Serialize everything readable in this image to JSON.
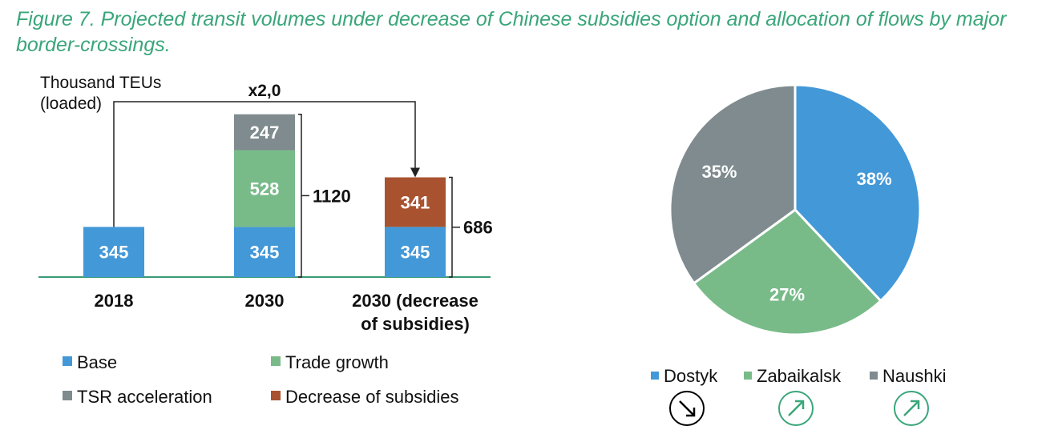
{
  "figure_title": "Figure 7. Projected transit volumes under decrease of Chinese subsidies option and allocation of flows by major border-crossings.",
  "colors": {
    "base": "#4398d8",
    "trade_growth": "#78bb89",
    "tsr_acceleration": "#7f8b8e",
    "decrease_of_subsidies": "#a9522f",
    "title": "#3aa67a",
    "axis": "#3a9a76",
    "pie_dostyk": "#4398d8",
    "pie_zabaikalsk": "#78bb89",
    "pie_naushki": "#7f8b8e",
    "icon_down": "#000000",
    "icon_up": "#3aa67a"
  },
  "chart_data": [
    {
      "type": "bar",
      "stacked": true,
      "ylabel_line1": "Thousand TEUs",
      "ylabel_line2": "(loaded)",
      "categories": [
        "2018",
        "2030",
        "2030 (decrease of subsidies)"
      ],
      "category_lines": [
        [
          "2018"
        ],
        [
          "2030"
        ],
        [
          "2030 (decrease",
          "of subsidies)"
        ]
      ],
      "series": [
        {
          "name": "Base",
          "color_key": "base",
          "values": [
            345,
            345,
            345
          ]
        },
        {
          "name": "Trade growth",
          "color_key": "trade_growth",
          "values": [
            0,
            528,
            0
          ]
        },
        {
          "name": "TSR acceleration",
          "color_key": "tsr_acceleration",
          "values": [
            0,
            247,
            0
          ]
        },
        {
          "name": "Decrease of subsidies",
          "color_key": "decrease_of_subsidies",
          "values": [
            0,
            0,
            341
          ]
        }
      ],
      "totals": [
        null,
        "1120",
        "686"
      ],
      "multiplier_label": "x2,0",
      "legend": [
        "Base",
        "Trade growth",
        "TSR acceleration",
        "Decrease of subsidies"
      ]
    },
    {
      "type": "pie",
      "slices": [
        {
          "name": "Dostyk",
          "value": 38,
          "label": "38%",
          "color_key": "pie_dostyk",
          "trend": "down"
        },
        {
          "name": "Zabaikalsk",
          "value": 27,
          "label": "27%",
          "color_key": "pie_zabaikalsk",
          "trend": "up"
        },
        {
          "name": "Naushki",
          "value": 35,
          "label": "35%",
          "color_key": "pie_naushki",
          "trend": "up"
        }
      ]
    }
  ]
}
